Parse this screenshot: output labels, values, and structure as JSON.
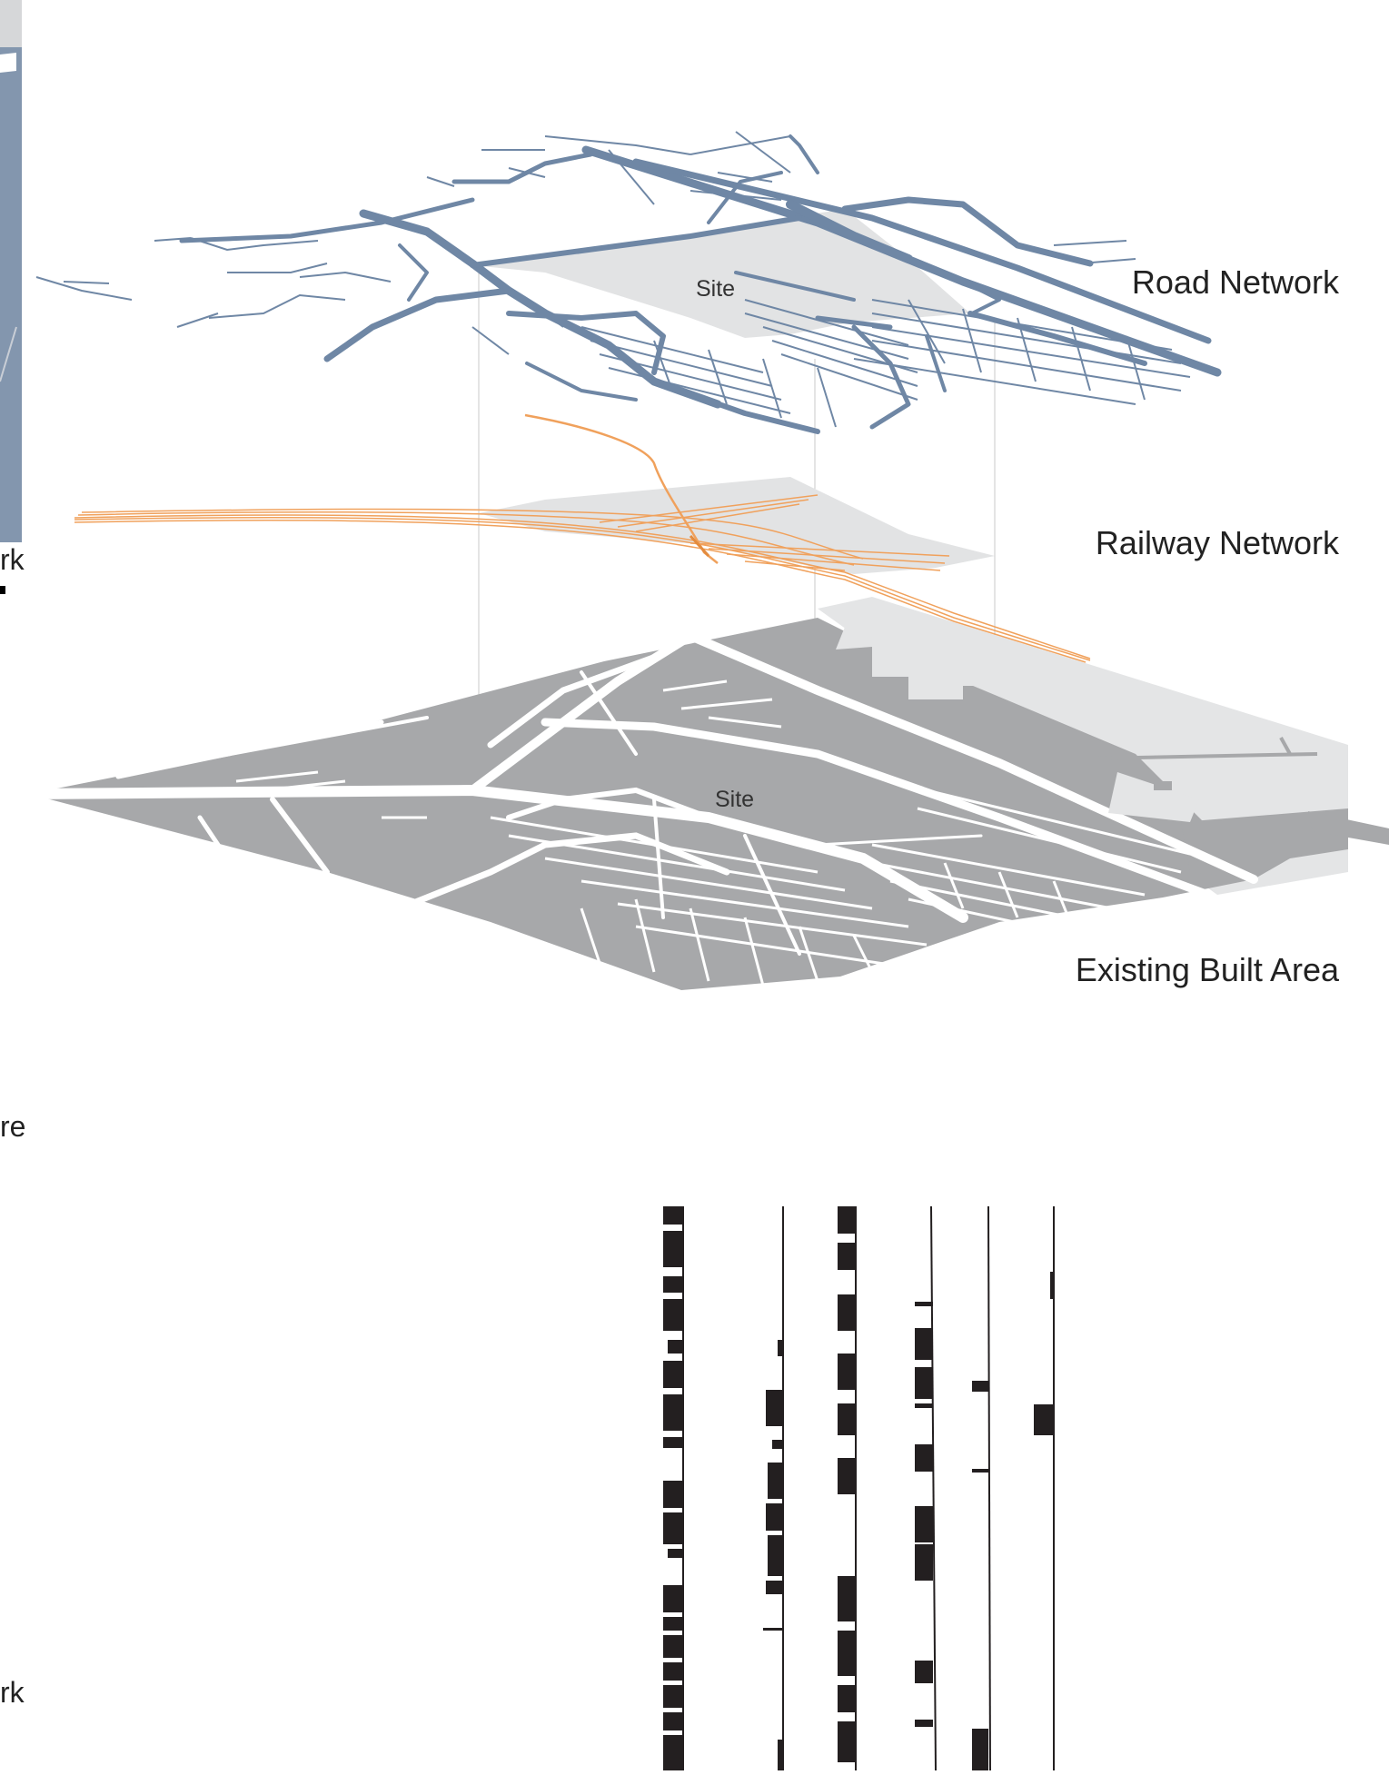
{
  "colors": {
    "road": "#6f87a5",
    "site_fill": "#e2e3e4",
    "railway": "#f0a15c",
    "built_area": "#a7a8aa",
    "background": "#ffffff",
    "bars": "#231f20"
  },
  "layers": {
    "road_network": {
      "label": "Road Network",
      "site_label": "Site"
    },
    "railway_network": {
      "label": "Railway Network"
    },
    "existing_built_area": {
      "label": "Existing Built Area",
      "site_label": "Site"
    }
  },
  "edge_fragments": {
    "top_left": "rk",
    "middle_left": "re",
    "bottom_left": "rk"
  }
}
